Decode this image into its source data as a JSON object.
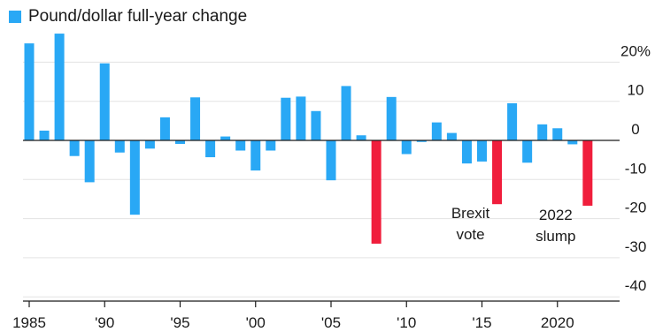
{
  "colors": {
    "normal": "#29a8f5",
    "highlight": "#f01e3c",
    "grid": "#e3e3e3",
    "axis": "#1a1a1a"
  },
  "chart_data": {
    "type": "bar",
    "legend": {
      "label": "Pound/dollar full-year change",
      "placement": "top-left"
    },
    "x": [
      1985,
      1986,
      1987,
      1988,
      1989,
      1990,
      1991,
      1992,
      1993,
      1994,
      1995,
      1996,
      1997,
      1998,
      1999,
      2000,
      2001,
      2002,
      2003,
      2004,
      2005,
      2006,
      2007,
      2008,
      2009,
      2010,
      2011,
      2012,
      2013,
      2014,
      2015,
      2016,
      2017,
      2018,
      2019,
      2020,
      2021,
      2022,
      2023
    ],
    "values": [
      24.8,
      2.5,
      27.3,
      -4.0,
      -10.7,
      19.7,
      -3.1,
      -19.0,
      -2.1,
      5.9,
      -0.9,
      11.0,
      -4.3,
      1.0,
      -2.6,
      -7.7,
      -2.6,
      10.9,
      11.2,
      7.5,
      -10.2,
      13.9,
      1.3,
      -26.4,
      11.1,
      -3.5,
      -0.4,
      4.6,
      1.9,
      -5.9,
      -5.4,
      -16.3,
      9.5,
      -5.7,
      4.1,
      3.1,
      -1.0,
      -16.7,
      0.0
    ],
    "highlight_years": [
      2008,
      2016,
      2022
    ],
    "ylim": [
      -40,
      25
    ],
    "yticks": [
      20,
      10,
      0,
      -10,
      -20,
      -30,
      -40
    ],
    "ytick_labels": [
      "20%",
      "10",
      "0",
      "-10",
      "-20",
      "-30",
      "-40"
    ],
    "xticks": [
      1985,
      1990,
      1995,
      2000,
      2005,
      2010,
      2015,
      2020
    ],
    "xtick_labels": [
      "1985",
      "'90",
      "'95",
      "'00",
      "'05",
      "'10",
      "'15",
      "2020"
    ],
    "grid": true,
    "annotations": [
      {
        "lines": [
          "Brexit",
          "vote"
        ],
        "year": 2016
      },
      {
        "lines": [
          "2022",
          "slump"
        ],
        "year": 2022
      }
    ]
  }
}
